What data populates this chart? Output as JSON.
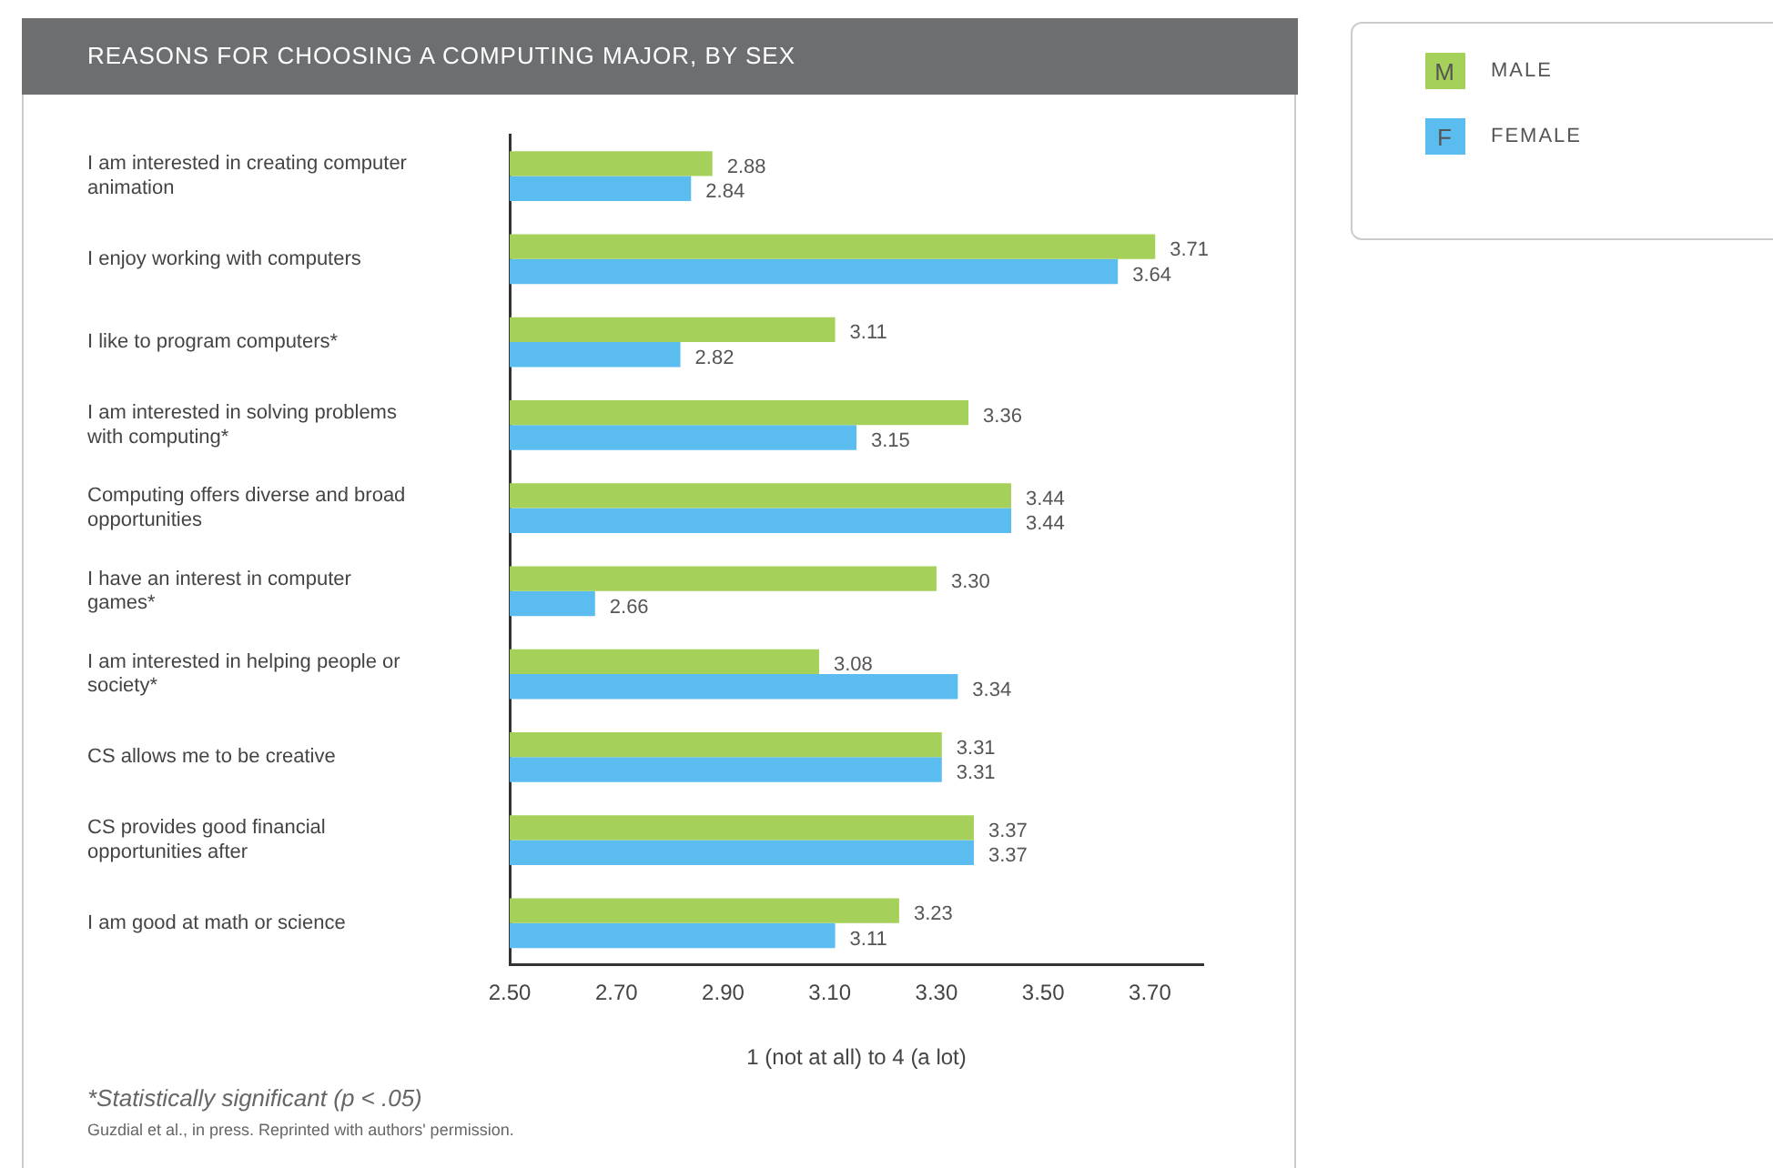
{
  "chart_data": {
    "type": "bar",
    "orientation": "horizontal",
    "title": "REASONS FOR CHOOSING A COMPUTING MAJOR, BY SEX",
    "xlabel": "1 (not at all) to 4 (a lot)",
    "categories": [
      "I am interested in creating computer animation",
      "I enjoy working with computers",
      "I like to program computers*",
      "I am interested in solving problems with computing*",
      "Computing offers diverse and broad opportunities",
      "I have an interest in computer games*",
      "I am interested in helping people or society*",
      "CS allows me to be creative",
      "CS provides good financial opportunities after",
      "I am good at math or science"
    ],
    "series": [
      {
        "name": "MALE",
        "color": "#a5d15a",
        "values": [
          2.88,
          3.71,
          3.11,
          3.36,
          3.44,
          3.3,
          3.08,
          3.31,
          3.37,
          3.23
        ],
        "value_labels": [
          "2.88",
          "3.71",
          "3.11",
          "3.36",
          "3.44",
          "3.30",
          "3.08",
          "3.31",
          "3.37",
          "3.23"
        ]
      },
      {
        "name": "FEMALE",
        "color": "#5bbcef",
        "values": [
          2.84,
          3.64,
          2.82,
          3.15,
          3.44,
          2.66,
          3.34,
          3.31,
          3.37,
          3.11
        ],
        "value_labels": [
          "2.84",
          "3.64",
          "2.82",
          "3.15",
          "3.44",
          "2.66",
          "3.34",
          "3.31",
          "3.37",
          "3.11"
        ]
      }
    ],
    "xlim": [
      2.5,
      3.8
    ],
    "xticks": [
      {
        "value": 2.5,
        "label": "2.50"
      },
      {
        "value": 2.7,
        "label": "2.70"
      },
      {
        "value": 2.9,
        "label": "2.90"
      },
      {
        "value": 3.1,
        "label": "3.10"
      },
      {
        "value": 3.3,
        "label": "3.30"
      },
      {
        "value": 3.5,
        "label": "3.50"
      },
      {
        "value": 3.7,
        "label": "3.70"
      }
    ],
    "grid": false,
    "legend": "top right",
    "annotations": [
      "*Statistically significant (p < .05)",
      "Guzdial et al., in press. Reprinted with authors' permission.",
      "M",
      "F"
    ]
  }
}
